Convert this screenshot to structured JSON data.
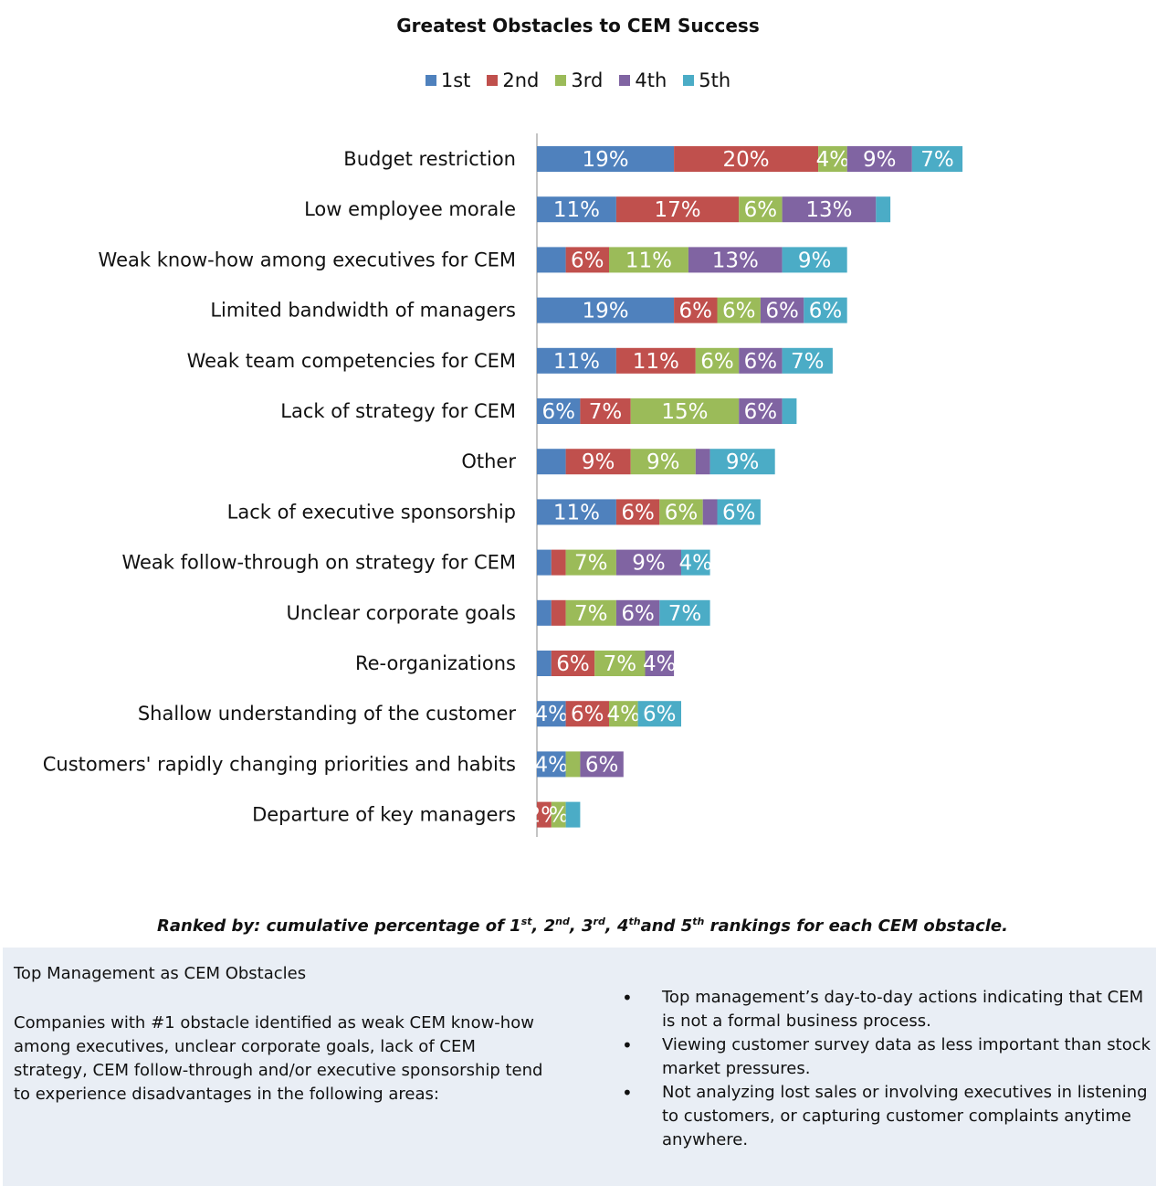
{
  "chart_data": {
    "type": "bar",
    "orientation": "horizontal",
    "stacked": true,
    "title": "Greatest Obstacles to CEM Success",
    "legend_position": "top",
    "xlim": [
      0,
      100
    ],
    "categories": [
      "Budget restriction",
      "Low employee morale",
      "Weak know-how among executives for CEM",
      "Limited bandwidth of managers",
      "Weak team competencies for CEM",
      "Lack of strategy for CEM",
      "Other",
      "Lack of executive sponsorship",
      "Weak follow-through on strategy for CEM",
      "Unclear corporate goals",
      "Re-organizations",
      "Shallow understanding of the customer",
      "Customers' rapidly changing priorities and habits",
      "Departure of key managers"
    ],
    "series": [
      {
        "name": "1st",
        "color": "#4f81bd",
        "values": [
          19,
          11,
          4,
          19,
          11,
          6,
          4,
          11,
          2,
          2,
          2,
          4,
          4,
          0
        ],
        "labels": [
          "19%",
          "11%",
          "",
          "19%",
          "11%",
          "6%",
          "",
          "11%",
          "",
          "",
          "",
          "4%",
          "4%",
          ""
        ]
      },
      {
        "name": "2nd",
        "color": "#c0504d",
        "values": [
          20,
          17,
          6,
          6,
          11,
          7,
          9,
          6,
          2,
          2,
          6,
          6,
          0,
          2
        ],
        "labels": [
          "20%",
          "17%",
          "6%",
          "6%",
          "11%",
          "7%",
          "9%",
          "6%",
          "",
          "",
          "6%",
          "6%",
          "",
          "2%"
        ]
      },
      {
        "name": "3rd",
        "color": "#9bbb59",
        "values": [
          4,
          6,
          11,
          6,
          6,
          15,
          9,
          6,
          7,
          7,
          7,
          4,
          2,
          2
        ],
        "labels": [
          "4%",
          "6%",
          "11%",
          "6%",
          "6%",
          "15%",
          "9%",
          "6%",
          "7%",
          "7%",
          "7%",
          "4%",
          "",
          "%"
        ]
      },
      {
        "name": "4th",
        "color": "#8064a2",
        "values": [
          9,
          13,
          13,
          6,
          6,
          6,
          2,
          2,
          9,
          6,
          4,
          0,
          6,
          0
        ],
        "labels": [
          "9%",
          "13%",
          "13%",
          "6%",
          "6%",
          "6%",
          "",
          "",
          "9%",
          "6%",
          "4%",
          "",
          "6%",
          ""
        ]
      },
      {
        "name": "5th",
        "color": "#4bacc6",
        "values": [
          7,
          2,
          9,
          6,
          7,
          2,
          9,
          6,
          4,
          7,
          0,
          6,
          0,
          2
        ],
        "labels": [
          "7%",
          "",
          "9%",
          "6%",
          "7%",
          "",
          "9%",
          "6%",
          "4%",
          "7%",
          "",
          "6%",
          "",
          ""
        ]
      }
    ]
  },
  "caption": {
    "prefix": "Ranked by: cumulative percentage of 1",
    "sup1": "st",
    "sep1": ", 2",
    "sup2": "nd",
    "sep2": ", 3",
    "sup3": "rd",
    "sep3": ", 4",
    "sup4": "th",
    "sep4": "and 5",
    "sup5": "th",
    "suffix": " rankings for each CEM obstacle."
  },
  "info": {
    "heading": "Top Management as CEM Obstacles",
    "body": "Companies with #1 obstacle identified as weak CEM know-how among executives, unclear corporate goals, lack of CEM strategy, CEM follow-through and/or executive sponsorship tend to experience disadvantages in the following areas:",
    "bullets": [
      "Top management’s day-to-day actions indicating that CEM is not a formal business process.",
      "Viewing customer survey data as less important than stock market pressures.",
      "Not analyzing lost sales or involving executives in listening to customers, or capturing customer complaints anytime anywhere."
    ]
  }
}
